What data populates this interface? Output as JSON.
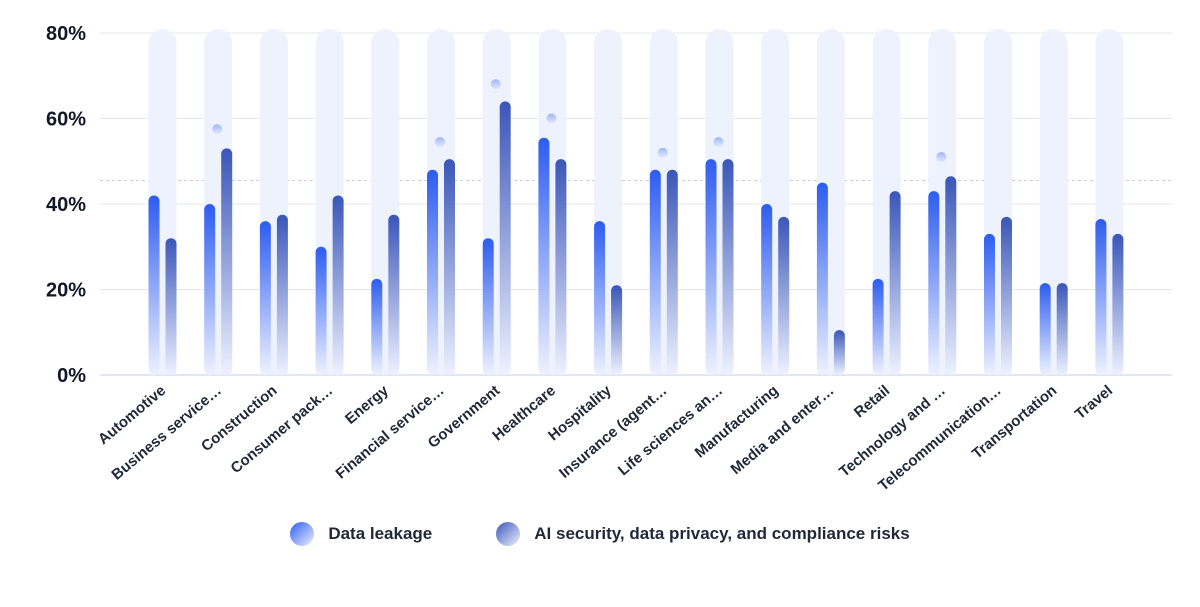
{
  "chart_data": {
    "type": "bar",
    "title": "",
    "xlabel": "",
    "ylabel": "",
    "ylim": [
      0,
      80
    ],
    "y_ticks": [
      0,
      20,
      40,
      60,
      80
    ],
    "y_tick_labels": [
      "0%",
      "20%",
      "40%",
      "60%",
      "80%"
    ],
    "reference_line": 45.5,
    "categories": [
      "Automotive",
      "Business service…",
      "Construction",
      "Consumer pack…",
      "Energy",
      "Financial service…",
      "Government",
      "Healthcare",
      "Hospitality",
      "Insurance (agent…",
      "Life sciences an…",
      "Manufacturing",
      "Media and enter…",
      "Retail",
      "Technology and …",
      "Telecommunication…",
      "Transportation",
      "Travel"
    ],
    "series": [
      {
        "name": "Data leakage",
        "values": [
          42,
          40,
          36,
          30,
          22.5,
          48,
          32,
          55.5,
          36,
          48,
          50.5,
          40,
          45,
          22.5,
          43,
          33,
          21.5,
          36.5
        ]
      },
      {
        "name": "AI security, data privacy, and compliance risks",
        "values": [
          32,
          53,
          37.5,
          42,
          37.5,
          50.5,
          64,
          50.5,
          21,
          48,
          50.5,
          37,
          10.5,
          43,
          46.5,
          37,
          21.5,
          33
        ]
      }
    ],
    "markers": [
      null,
      57.5,
      null,
      null,
      null,
      54.5,
      68,
      60,
      null,
      52,
      54.5,
      null,
      null,
      null,
      51,
      null,
      null,
      null
    ]
  },
  "legend": {
    "items": [
      {
        "label": "Data leakage"
      },
      {
        "label": "AI security, data privacy, and compliance risks"
      }
    ]
  },
  "colors": {
    "series1_top": "#2d5cf0",
    "series1_bottom": "#eef2ff",
    "series2_top": "#3a56b8",
    "series2_bottom": "#eef2ff",
    "pill": "#eef2fd",
    "marker": "#b7c8f5",
    "grid": "#e5e7eb",
    "axis": "#d6deef"
  }
}
